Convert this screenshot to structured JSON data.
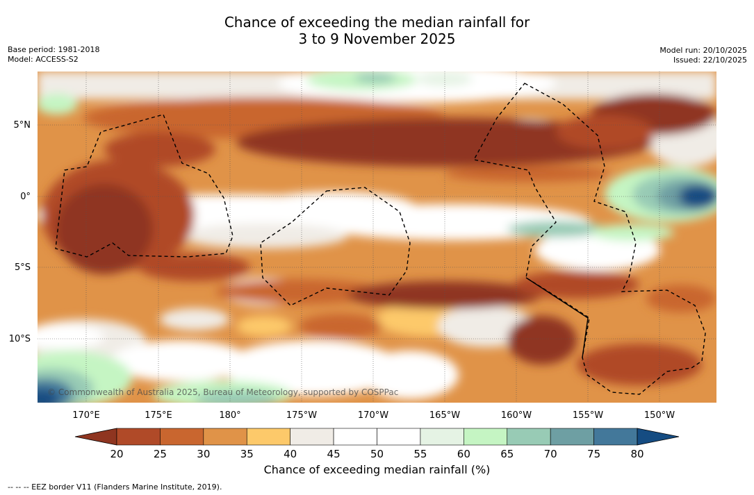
{
  "title": {
    "line1": "Chance of exceeding the median rainfall for",
    "line2": "3 to 9 November 2025"
  },
  "meta": {
    "base_period": "Base period: 1981-2018",
    "model": "Model: ACCESS-S2",
    "model_run": "Model run: 20/10/2025",
    "issued": "Issued: 22/10/2025"
  },
  "copyright": "© Commonwealth of Australia 2025, Bureau of Meteorology, supported by COSPPac",
  "footer": "--  --  -- EEZ border V11 (Flanders Marine Institute, 2019).",
  "colorbar": {
    "label": "Chance of exceeding median rainfall (%)",
    "ticks": [
      "20",
      "25",
      "30",
      "35",
      "40",
      "45",
      "50",
      "55",
      "60",
      "65",
      "70",
      "75",
      "80"
    ],
    "colors": [
      "#8f3520",
      "#b04a28",
      "#c9662f",
      "#e09348",
      "#fdc96a",
      "#f0ece6",
      "#ffffff",
      "#ffffff",
      "#e5f3e4",
      "#c5f5c3",
      "#98cbb5",
      "#6e9fa3",
      "#43789a",
      "#154c82"
    ]
  },
  "map": {
    "lon_labels": [
      "170°E",
      "175°E",
      "180°",
      "175°W",
      "170°W",
      "165°W",
      "160°W",
      "155°W",
      "150°W"
    ],
    "lat_labels": [
      "5°N",
      "0°",
      "5°S",
      "10°S"
    ]
  }
}
